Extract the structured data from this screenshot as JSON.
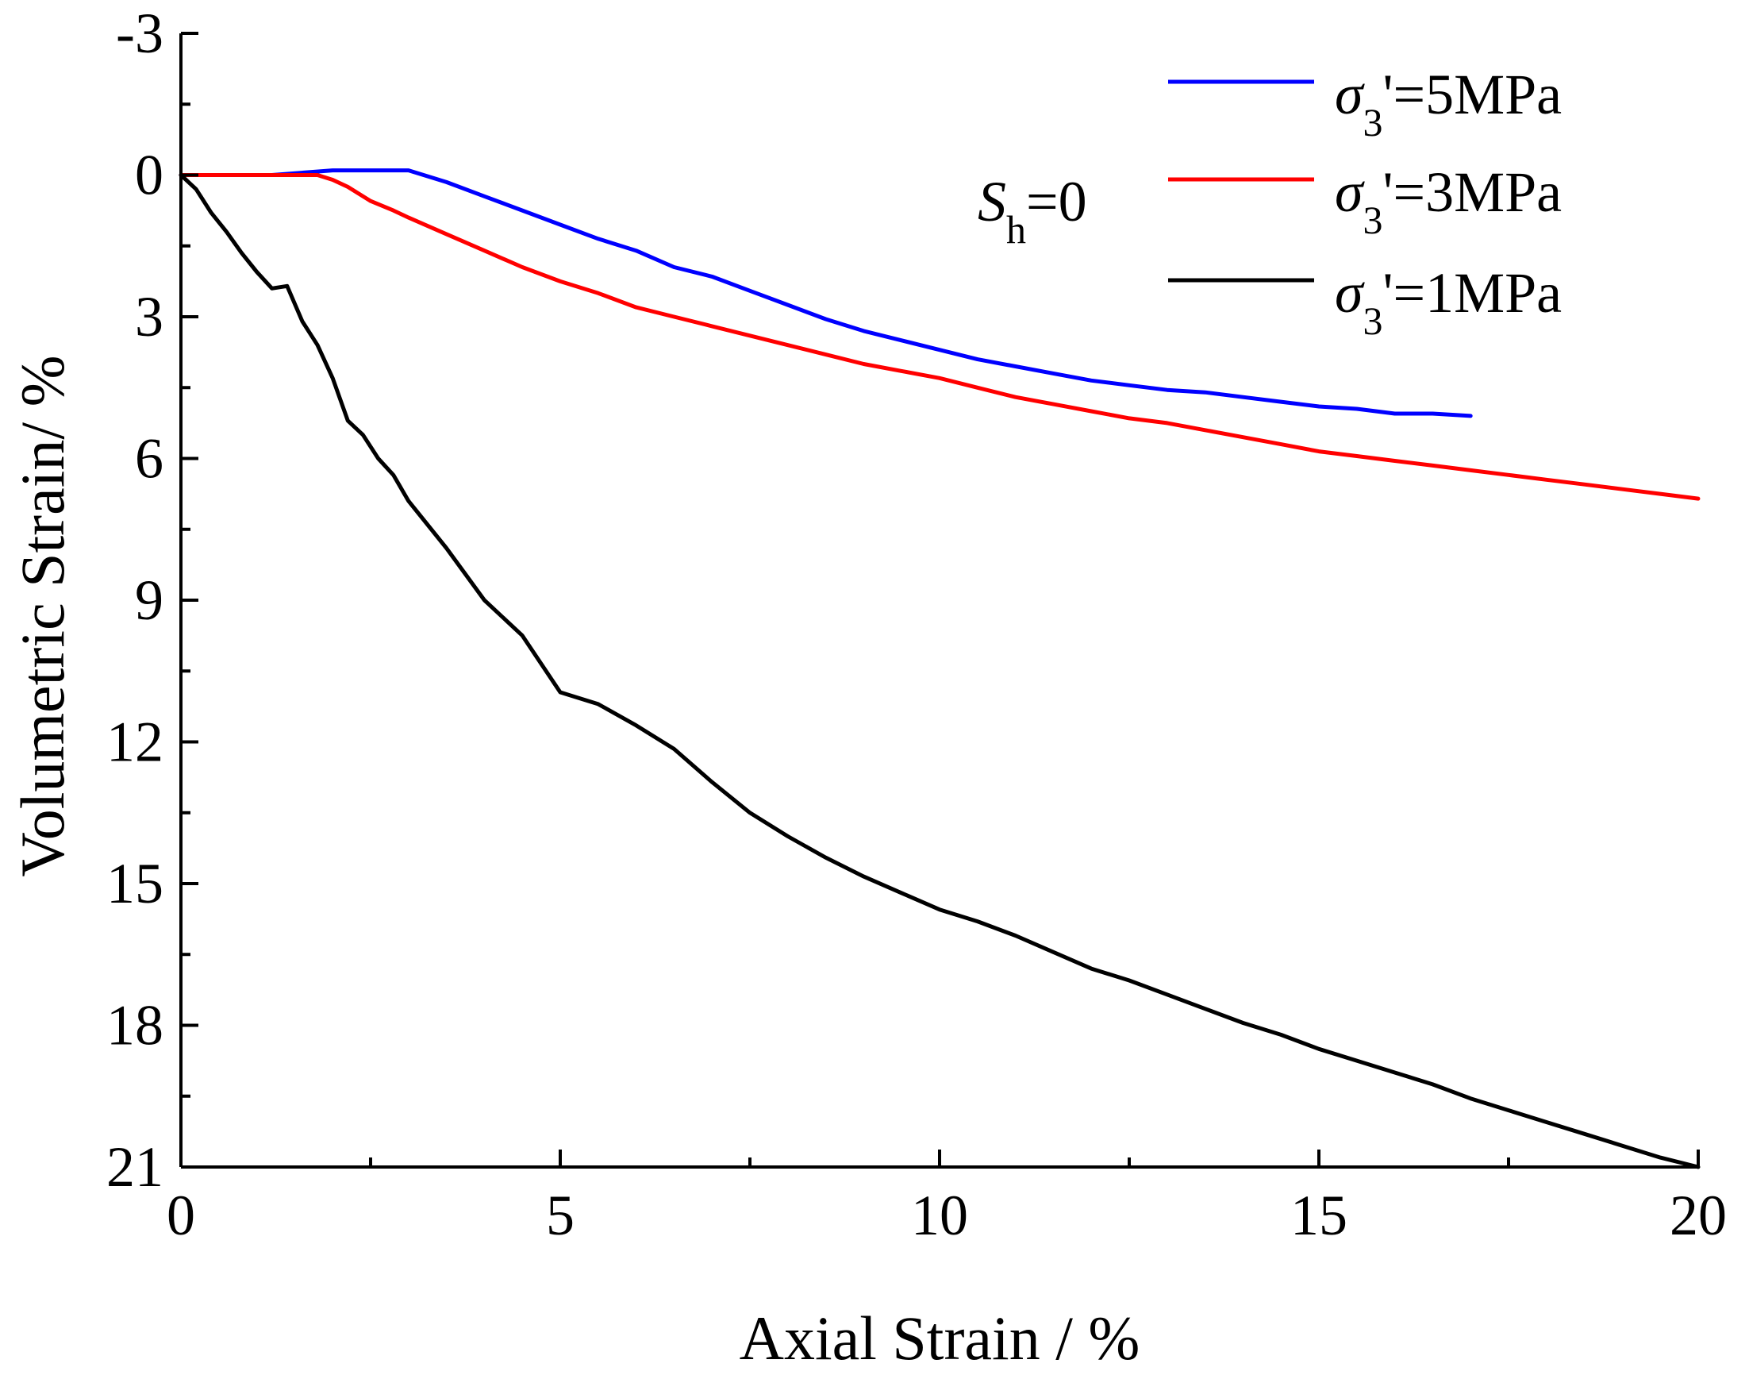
{
  "chart_data": {
    "type": "line",
    "title": "",
    "xlabel": "Axial Strain / %",
    "ylabel": "Volumetric Strain/ %",
    "xlim": [
      0,
      20
    ],
    "ylim": [
      21,
      -3
    ],
    "y_inverted": true,
    "x_ticks": [
      0,
      5,
      10,
      15,
      20
    ],
    "x_tick_labels": [
      "0",
      "5",
      "10",
      "15",
      "20"
    ],
    "y_ticks": [
      -3,
      0,
      3,
      6,
      9,
      12,
      15,
      18,
      21
    ],
    "y_tick_labels": [
      "-3",
      "0",
      "3",
      "6",
      "9",
      "12",
      "15",
      "18",
      "21"
    ],
    "annotation": {
      "s": "S",
      "sub": "h",
      "rest": "=0"
    },
    "legend_position": "top-right",
    "series": [
      {
        "name": "σ3'=5MPa",
        "legend": {
          "sigma": "σ",
          "sub": "3",
          "rest": "'=5MPa"
        },
        "color": "#0000ff",
        "x": [
          0,
          1.2,
          2.0,
          3.0,
          3.5,
          4.0,
          4.5,
          5.0,
          5.5,
          6.0,
          6.5,
          7.0,
          7.5,
          8.0,
          8.5,
          9.0,
          9.5,
          10.0,
          10.5,
          11.0,
          11.5,
          12.0,
          12.5,
          13.0,
          13.5,
          14.0,
          14.5,
          15.0,
          15.5,
          16.0,
          16.5,
          17.0
        ],
        "y": [
          0,
          0,
          -0.1,
          -0.1,
          0.15,
          0.45,
          0.75,
          1.05,
          1.35,
          1.6,
          1.95,
          2.15,
          2.45,
          2.75,
          3.05,
          3.3,
          3.5,
          3.7,
          3.9,
          4.05,
          4.2,
          4.35,
          4.45,
          4.55,
          4.6,
          4.7,
          4.8,
          4.9,
          4.95,
          5.05,
          5.05,
          5.1
        ]
      },
      {
        "name": "σ3'=3MPa",
        "legend": {
          "sigma": "σ",
          "sub": "3",
          "rest": "'=3MPa"
        },
        "color": "#ff0000",
        "x": [
          0,
          1.8,
          2.0,
          2.2,
          2.5,
          2.8,
          3.0,
          3.5,
          4.0,
          4.5,
          5.0,
          5.5,
          6.0,
          6.5,
          7.0,
          7.5,
          8.0,
          8.5,
          9.0,
          9.5,
          10.0,
          10.5,
          11.0,
          11.5,
          12.0,
          12.5,
          13.0,
          13.5,
          14.0,
          14.5,
          15.0,
          15.5,
          16.0,
          16.5,
          17.0,
          17.5,
          18.0,
          18.5,
          19.0,
          19.5,
          20.0
        ],
        "y": [
          0,
          0,
          0.1,
          0.25,
          0.55,
          0.75,
          0.9,
          1.25,
          1.6,
          1.95,
          2.25,
          2.5,
          2.8,
          3.0,
          3.2,
          3.4,
          3.6,
          3.8,
          4.0,
          4.15,
          4.3,
          4.5,
          4.7,
          4.85,
          5.0,
          5.15,
          5.25,
          5.4,
          5.55,
          5.7,
          5.85,
          5.95,
          6.05,
          6.15,
          6.25,
          6.35,
          6.45,
          6.55,
          6.65,
          6.75,
          6.85
        ]
      },
      {
        "name": "σ3'=1MPa",
        "legend": {
          "sigma": "σ",
          "sub": "3",
          "rest": "'=1MPa"
        },
        "color": "#000000",
        "x": [
          0,
          0.2,
          0.4,
          0.6,
          0.8,
          1.0,
          1.2,
          1.4,
          1.6,
          1.8,
          2.0,
          2.2,
          2.4,
          2.6,
          2.8,
          3.0,
          3.5,
          4.0,
          4.5,
          5.0,
          5.5,
          6.0,
          6.5,
          7.0,
          7.5,
          8.0,
          8.5,
          9.0,
          9.5,
          10.0,
          10.5,
          11.0,
          11.5,
          12.0,
          12.5,
          13.0,
          13.5,
          14.0,
          14.5,
          15.0,
          15.5,
          16.0,
          16.5,
          17.0,
          17.5,
          18.0,
          18.5,
          19.0,
          19.5,
          20.0
        ],
        "y": [
          0,
          0.3,
          0.8,
          1.2,
          1.65,
          2.05,
          2.4,
          2.35,
          3.1,
          3.6,
          4.3,
          5.2,
          5.5,
          6.0,
          6.35,
          6.9,
          7.9,
          9.0,
          9.75,
          10.95,
          11.2,
          11.65,
          12.15,
          12.85,
          13.5,
          14.0,
          14.45,
          14.85,
          15.2,
          15.55,
          15.8,
          16.1,
          16.45,
          16.8,
          17.05,
          17.35,
          17.65,
          17.95,
          18.2,
          18.5,
          18.75,
          19.0,
          19.25,
          19.55,
          19.8,
          20.05,
          20.3,
          20.55,
          20.8,
          21.0
        ]
      }
    ]
  }
}
